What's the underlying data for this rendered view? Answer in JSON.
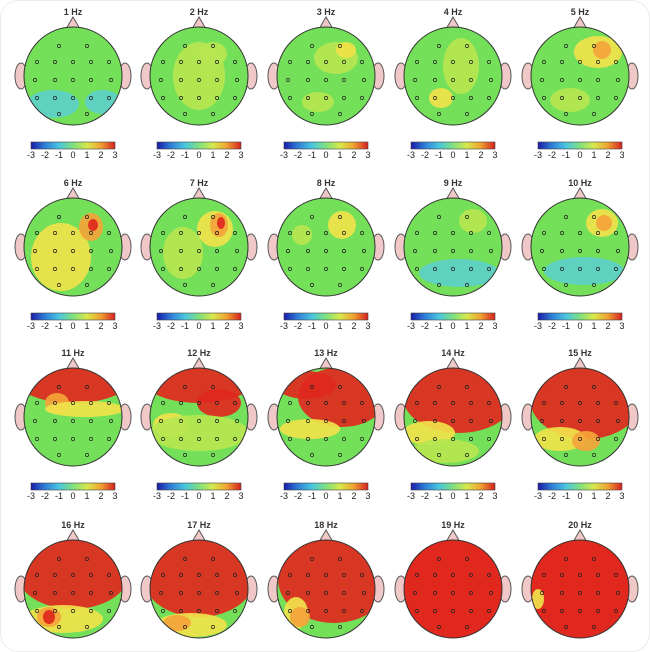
{
  "figure": {
    "frequencies": [
      {
        "label": "1 Hz"
      },
      {
        "label": "2 Hz"
      },
      {
        "label": "3 Hz"
      },
      {
        "label": "4 Hz"
      },
      {
        "label": "5 Hz"
      },
      {
        "label": "6 Hz"
      },
      {
        "label": "7 Hz"
      },
      {
        "label": "8 Hz"
      },
      {
        "label": "9 Hz"
      },
      {
        "label": "10 Hz"
      },
      {
        "label": "11 Hz"
      },
      {
        "label": "12 Hz"
      },
      {
        "label": "13 Hz"
      },
      {
        "label": "14 Hz"
      },
      {
        "label": "15 Hz"
      },
      {
        "label": "16 Hz"
      },
      {
        "label": "17 Hz"
      },
      {
        "label": "18 Hz"
      },
      {
        "label": "19 Hz"
      },
      {
        "label": "20 Hz"
      }
    ],
    "colorbar": {
      "ticks": [
        "-3",
        "-2",
        "-1",
        "0",
        "1",
        "2",
        "3"
      ],
      "colors": [
        "#1a1aa8",
        "#2f7fd8",
        "#49c6e0",
        "#7fe07f",
        "#d8e84a",
        "#f0a030",
        "#d42020"
      ]
    },
    "palette": {
      "green": "#74e05a",
      "yellowgreen": "#b6e650",
      "yellow": "#f0e24a",
      "orange": "#f4a43a",
      "red": "#e0281e",
      "cyan": "#5ccfc8",
      "skin": "#f0c8c8"
    }
  }
}
